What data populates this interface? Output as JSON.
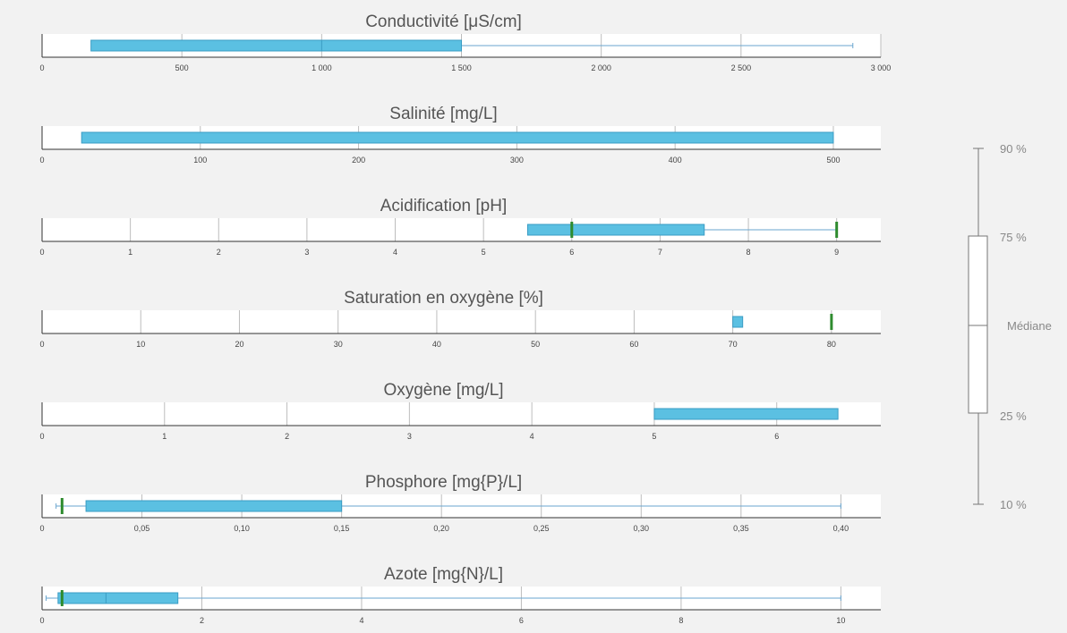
{
  "colors": {
    "box": "#5bc0e2",
    "box_stroke": "#3a9cc4",
    "whisker": "#6aa6cf",
    "threshold": "#2e8b2e",
    "grid": "#bdbdbd",
    "axis": "#333333"
  },
  "chart_data": [
    {
      "type": "box",
      "title": "Conductivité [μS/cm]",
      "xlim": [
        0,
        3000
      ],
      "ticks": [
        0,
        500,
        1000,
        1500,
        2000,
        2500,
        3000
      ],
      "tick_labels": [
        "0",
        "500",
        "1 000",
        "1 500",
        "2 000",
        "2 500",
        "3 000"
      ],
      "p10": null,
      "p25": 175,
      "median": 1000,
      "p75": 1500,
      "p90": 2900,
      "thresholds": []
    },
    {
      "type": "box",
      "title": "Salinité [mg/L]",
      "xlim": [
        0,
        530
      ],
      "ticks": [
        0,
        100,
        200,
        300,
        400,
        500
      ],
      "tick_labels": [
        "0",
        "100",
        "200",
        "300",
        "400",
        "500"
      ],
      "p10": null,
      "p25": 25,
      "median": null,
      "p75": 500,
      "p90": null,
      "thresholds": []
    },
    {
      "type": "box",
      "title": "Acidification [pH]",
      "xlim": [
        0,
        9.5
      ],
      "ticks": [
        0,
        1,
        2,
        3,
        4,
        5,
        6,
        7,
        8,
        9
      ],
      "tick_labels": [
        "0",
        "1",
        "2",
        "3",
        "4",
        "5",
        "6",
        "7",
        "8",
        "9"
      ],
      "p10": null,
      "p25": 5.5,
      "median": null,
      "p75": 7.5,
      "p90": 9,
      "thresholds": [
        6,
        9
      ]
    },
    {
      "type": "box",
      "title": "Saturation en oxygène [%]",
      "xlim": [
        0,
        85
      ],
      "ticks": [
        0,
        10,
        20,
        30,
        40,
        50,
        60,
        70,
        80
      ],
      "tick_labels": [
        "0",
        "10",
        "20",
        "30",
        "40",
        "50",
        "60",
        "70",
        "80"
      ],
      "p10": null,
      "p25": 70,
      "median": null,
      "p75": 71,
      "p90": null,
      "thresholds": [
        80
      ]
    },
    {
      "type": "box",
      "title": "Oxygène [mg/L]",
      "xlim": [
        0,
        6.85
      ],
      "ticks": [
        0,
        1,
        2,
        3,
        4,
        5,
        6
      ],
      "tick_labels": [
        "0",
        "1",
        "2",
        "3",
        "4",
        "5",
        "6"
      ],
      "p10": null,
      "p25": 5,
      "median": null,
      "p75": 6.5,
      "p90": null,
      "thresholds": []
    },
    {
      "type": "box",
      "title": "Phosphore [mg{P}/L]",
      "xlim": [
        0,
        0.42
      ],
      "ticks": [
        0,
        0.05,
        0.1,
        0.15,
        0.2,
        0.25,
        0.3,
        0.35,
        0.4
      ],
      "tick_labels": [
        "0",
        "0,05",
        "0,10",
        "0,15",
        "0,20",
        "0,25",
        "0,30",
        "0,35",
        "0,40"
      ],
      "p10": 0.007,
      "p25": 0.022,
      "median": null,
      "p75": 0.15,
      "p90": 0.4,
      "thresholds": [
        0.01
      ]
    },
    {
      "type": "box",
      "title": "Azote [mg{N}/L]",
      "xlim": [
        0,
        10.5
      ],
      "ticks": [
        0,
        2,
        4,
        6,
        8,
        10
      ],
      "tick_labels": [
        "0",
        "2",
        "4",
        "6",
        "8",
        "10"
      ],
      "p10": 0.05,
      "p25": 0.2,
      "median": 0.8,
      "p75": 1.7,
      "p90": 10,
      "thresholds": [
        0.25
      ]
    }
  ],
  "legend": {
    "p90": "90 %",
    "p75": "75 %",
    "median": "Médiane",
    "p25": "25 %",
    "p10": "10 %"
  }
}
